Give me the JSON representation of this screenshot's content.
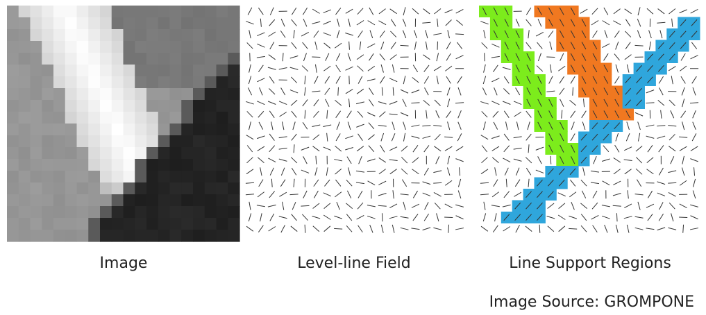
{
  "captions": [
    "Image",
    "Level-line Field",
    "Line Support Regions"
  ],
  "source": "Image Source: GROMPONE"
}
